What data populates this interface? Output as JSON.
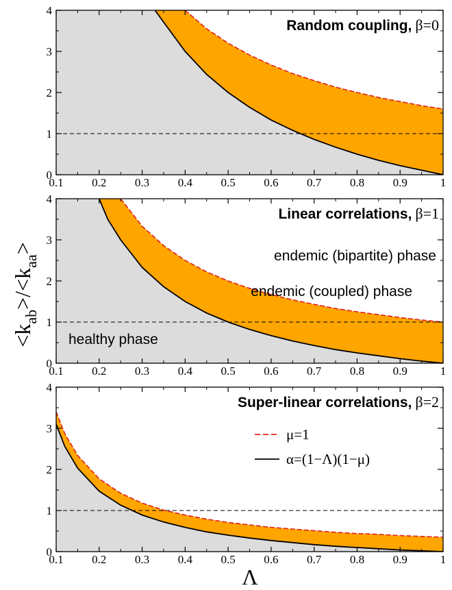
{
  "chart_data": [
    {
      "type": "area",
      "title": "Random coupling,",
      "title_param": "β=0",
      "beta": 0,
      "xlim": [
        0.1,
        1.0
      ],
      "ylim": [
        0,
        4
      ],
      "xticks": [
        "0.1",
        "0.2",
        "0.3",
        "0.4",
        "0.5",
        "0.6",
        "0.7",
        "0.8",
        "0.9",
        "1"
      ],
      "yticks": [
        "0",
        "1",
        "2",
        "3",
        "4"
      ],
      "series": [
        {
          "key": "mu1",
          "style": "dashed",
          "color": "#e0201a",
          "x": [
            0.4,
            0.45,
            0.5,
            0.55,
            0.6,
            0.65,
            0.7,
            0.75,
            0.8,
            0.85,
            0.9,
            0.95,
            1.0
          ],
          "y": [
            4.0,
            3.55,
            3.2,
            2.91,
            2.67,
            2.46,
            2.29,
            2.13,
            2.0,
            1.88,
            1.78,
            1.68,
            1.6
          ]
        },
        {
          "key": "alpha",
          "style": "solid",
          "color": "#000000",
          "x": [
            0.33,
            0.35,
            0.4,
            0.45,
            0.5,
            0.55,
            0.6,
            0.65,
            0.7,
            0.75,
            0.8,
            0.85,
            0.9,
            0.95,
            1.0
          ],
          "y": [
            4.0,
            3.71,
            3.0,
            2.44,
            2.0,
            1.64,
            1.33,
            1.08,
            0.86,
            0.67,
            0.5,
            0.35,
            0.22,
            0.11,
            0.0
          ]
        }
      ],
      "reference_line": 1
    },
    {
      "type": "area",
      "title": "Linear correlations,",
      "title_param": "β=1",
      "beta": 1,
      "xlim": [
        0.1,
        1.0
      ],
      "ylim": [
        0,
        4
      ],
      "xticks": [
        "0.1",
        "0.2",
        "0.3",
        "0.4",
        "0.5",
        "0.6",
        "0.7",
        "0.8",
        "0.9",
        "1"
      ],
      "yticks": [
        "0",
        "1",
        "2",
        "3",
        "4"
      ],
      "series": [
        {
          "key": "mu1",
          "style": "dashed",
          "color": "#e0201a",
          "x": [
            0.25,
            0.3,
            0.35,
            0.4,
            0.45,
            0.5,
            0.55,
            0.6,
            0.65,
            0.7,
            0.75,
            0.8,
            0.85,
            0.9,
            0.95,
            1.0
          ],
          "y": [
            4.0,
            3.33,
            2.86,
            2.5,
            2.22,
            2.0,
            1.82,
            1.67,
            1.54,
            1.43,
            1.33,
            1.25,
            1.18,
            1.11,
            1.05,
            1.0
          ]
        },
        {
          "key": "alpha",
          "style": "solid",
          "color": "#000000",
          "x": [
            0.2,
            0.22,
            0.25,
            0.3,
            0.35,
            0.4,
            0.45,
            0.5,
            0.55,
            0.6,
            0.65,
            0.7,
            0.75,
            0.8,
            0.85,
            0.9,
            0.95,
            1.0
          ],
          "y": [
            4.0,
            3.5,
            3.0,
            2.33,
            1.86,
            1.5,
            1.22,
            1.0,
            0.82,
            0.67,
            0.54,
            0.43,
            0.33,
            0.25,
            0.18,
            0.11,
            0.05,
            0.0
          ]
        }
      ],
      "reference_line": 1,
      "annotations": [
        "endemic (bipartite) phase",
        "endemic (coupled) phase",
        "healthy phase"
      ]
    },
    {
      "type": "area",
      "title": "Super-linear correlations,",
      "title_param": "β=2",
      "beta": 2,
      "xlim": [
        0.1,
        1.0
      ],
      "ylim": [
        0,
        4
      ],
      "xticks": [
        "0.1",
        "0.2",
        "0.3",
        "0.4",
        "0.5",
        "0.6",
        "0.7",
        "0.8",
        "0.9",
        "1"
      ],
      "yticks": [
        "0",
        "1",
        "2",
        "3",
        "4"
      ],
      "series": [
        {
          "key": "mu1",
          "style": "dashed",
          "color": "#e0201a",
          "x": [
            0.1,
            0.12,
            0.15,
            0.2,
            0.25,
            0.3,
            0.35,
            0.4,
            0.45,
            0.5,
            0.55,
            0.6,
            0.65,
            0.7,
            0.75,
            0.8,
            0.85,
            0.9,
            0.95,
            1.0
          ],
          "y": [
            3.4,
            2.87,
            2.34,
            1.77,
            1.42,
            1.18,
            1.01,
            0.89,
            0.79,
            0.71,
            0.65,
            0.59,
            0.55,
            0.51,
            0.47,
            0.44,
            0.42,
            0.39,
            0.37,
            0.35
          ]
        },
        {
          "key": "alpha",
          "style": "solid",
          "color": "#000000",
          "x": [
            0.1,
            0.12,
            0.15,
            0.2,
            0.25,
            0.3,
            0.35,
            0.4,
            0.45,
            0.5,
            0.55,
            0.6,
            0.65,
            0.7,
            0.75,
            0.8,
            0.85,
            0.9,
            0.95,
            1.0
          ],
          "y": [
            3.1,
            2.56,
            2.03,
            1.47,
            1.13,
            0.89,
            0.72,
            0.59,
            0.48,
            0.4,
            0.33,
            0.27,
            0.22,
            0.17,
            0.13,
            0.1,
            0.07,
            0.04,
            0.02,
            0.0
          ]
        }
      ],
      "reference_line": 1,
      "legend": {
        "placement": "right",
        "entries": [
          {
            "key": "mu1",
            "label": "μ=1"
          },
          {
            "key": "alpha",
            "label": "α=(1−Λ)(1−μ)"
          }
        ]
      }
    }
  ],
  "xlabel": "Λ",
  "ylabel": "<kab>/<kaa>",
  "ylabel_main_1": "<k",
  "ylabel_sub_1": "ab",
  "ylabel_main_2": ">/<k",
  "ylabel_sub_2": "aa",
  "ylabel_main_3": ">",
  "colors": {
    "healthy_fill": "#dcdcdc",
    "coupled_fill": "#ffa500",
    "bipartite_fill": "#ffffff",
    "mu_line": "#e0201a",
    "alpha_line": "#000000"
  }
}
